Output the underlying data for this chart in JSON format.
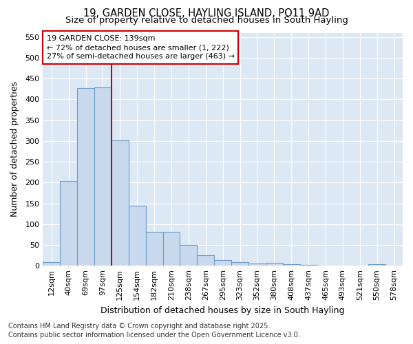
{
  "title_line1": "19, GARDEN CLOSE, HAYLING ISLAND, PO11 9AD",
  "title_line2": "Size of property relative to detached houses in South Hayling",
  "xlabel": "Distribution of detached houses by size in South Hayling",
  "ylabel": "Number of detached properties",
  "categories": [
    "12sqm",
    "40sqm",
    "69sqm",
    "97sqm",
    "125sqm",
    "154sqm",
    "182sqm",
    "210sqm",
    "238sqm",
    "267sqm",
    "295sqm",
    "323sqm",
    "352sqm",
    "380sqm",
    "408sqm",
    "437sqm",
    "465sqm",
    "493sqm",
    "521sqm",
    "550sqm",
    "578sqm"
  ],
  "values": [
    8,
    203,
    427,
    428,
    302,
    145,
    82,
    82,
    50,
    25,
    13,
    8,
    6,
    7,
    3,
    2,
    1,
    1,
    1,
    3,
    1
  ],
  "bar_color": "#c8d9ee",
  "bar_edge_color": "#6b9dc8",
  "vline_color": "#cc0000",
  "annotation_text_line1": "19 GARDEN CLOSE: 139sqm",
  "annotation_text_line2": "← 72% of detached houses are smaller (1, 222)",
  "annotation_text_line3": "27% of semi-detached houses are larger (463) →",
  "annotation_box_facecolor": "#ffffff",
  "annotation_box_edgecolor": "#cc0000",
  "ylim": [
    0,
    560
  ],
  "yticks": [
    0,
    50,
    100,
    150,
    200,
    250,
    300,
    350,
    400,
    450,
    500,
    550
  ],
  "figure_facecolor": "#ffffff",
  "plot_facecolor": "#dde8f5",
  "grid_color": "#ffffff",
  "title_fontsize": 10.5,
  "subtitle_fontsize": 9.5,
  "tick_fontsize": 8,
  "label_fontsize": 9,
  "annot_fontsize": 8,
  "footer_fontsize": 7,
  "footer_line1": "Contains HM Land Registry data © Crown copyright and database right 2025.",
  "footer_line2": "Contains public sector information licensed under the Open Government Licence v3.0.",
  "vline_bin_index": 4
}
